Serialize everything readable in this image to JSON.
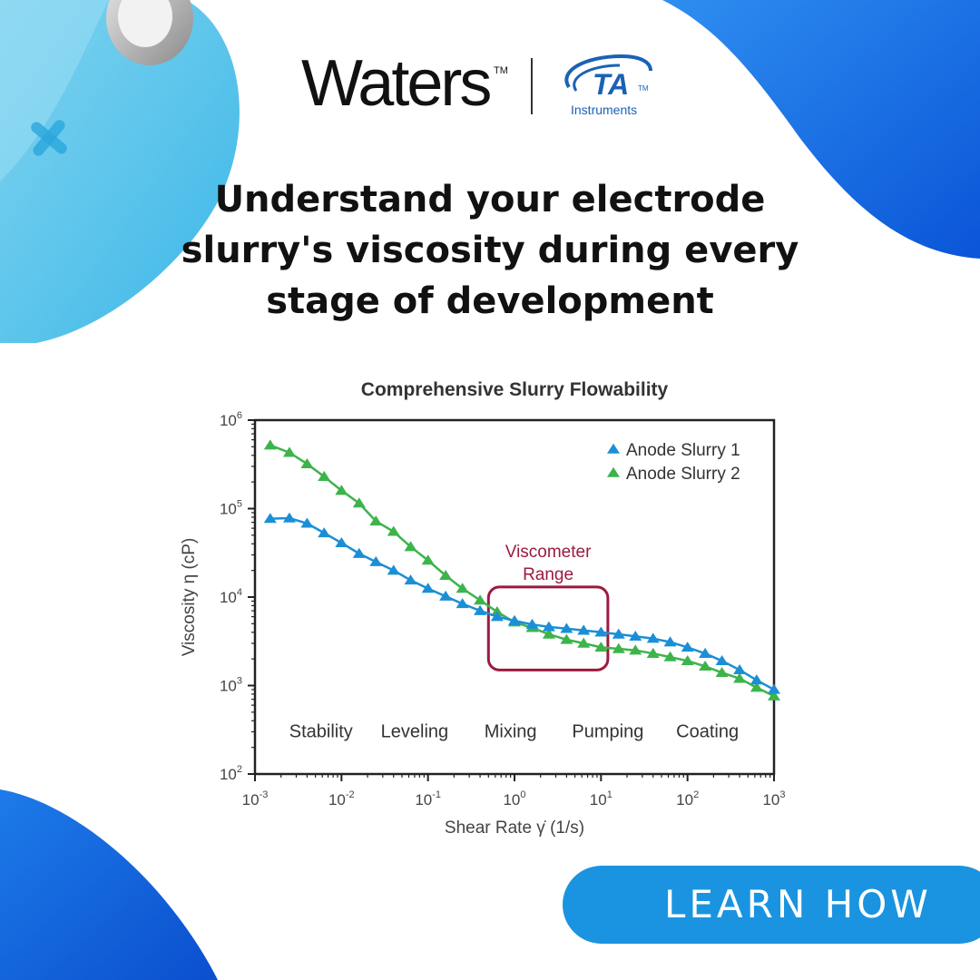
{
  "brand": {
    "waters": "Waters",
    "waters_tm": "TM",
    "ta": "TA",
    "ta_tm": "TM",
    "ta_sub": "Instruments"
  },
  "headline": {
    "lines": [
      "Understand your electrode",
      "slurry's viscosity during every",
      "stage of development"
    ]
  },
  "cta": {
    "label": "LEARN HOW"
  },
  "colors": {
    "series1": "#1b8fd6",
    "series2": "#3cb44b",
    "box": "#9b1b3f",
    "accent": "#1a94e0"
  },
  "chart_data": {
    "type": "line",
    "title": "Comprehensive Slurry Flowability",
    "xlabel": "Shear Rate γ̇ (1/s)",
    "ylabel": "Viscosity η (cP)",
    "xscale": "log",
    "yscale": "log",
    "xlim": [
      0.001,
      1000
    ],
    "ylim": [
      100,
      1000000
    ],
    "x_ticks": [
      {
        "base": "10",
        "exp": "-3"
      },
      {
        "base": "10",
        "exp": "-2"
      },
      {
        "base": "10",
        "exp": "-1"
      },
      {
        "base": "10",
        "exp": "0"
      },
      {
        "base": "10",
        "exp": "1"
      },
      {
        "base": "10",
        "exp": "2"
      },
      {
        "base": "10",
        "exp": "3"
      }
    ],
    "y_ticks": [
      {
        "base": "10",
        "exp": "2"
      },
      {
        "base": "10",
        "exp": "3"
      },
      {
        "base": "10",
        "exp": "4"
      },
      {
        "base": "10",
        "exp": "5"
      },
      {
        "base": "10",
        "exp": "6"
      }
    ],
    "grid": false,
    "legend": "top-right",
    "series": [
      {
        "name": "Anode Slurry 1",
        "marker": "triangle",
        "points": [
          [
            0.0015,
            77000
          ],
          [
            0.0025,
            78000
          ],
          [
            0.004,
            68000
          ],
          [
            0.0063,
            53000
          ],
          [
            0.01,
            41000
          ],
          [
            0.016,
            31000
          ],
          [
            0.025,
            25000
          ],
          [
            0.04,
            20000
          ],
          [
            0.063,
            15500
          ],
          [
            0.1,
            12500
          ],
          [
            0.16,
            10200
          ],
          [
            0.25,
            8400
          ],
          [
            0.4,
            7000
          ],
          [
            0.63,
            6000
          ],
          [
            1.0,
            5400
          ],
          [
            1.6,
            4900
          ],
          [
            2.5,
            4600
          ],
          [
            4.0,
            4400
          ],
          [
            6.3,
            4200
          ],
          [
            10,
            4000
          ],
          [
            16,
            3800
          ],
          [
            25,
            3600
          ],
          [
            40,
            3400
          ],
          [
            63,
            3100
          ],
          [
            100,
            2700
          ],
          [
            160,
            2300
          ],
          [
            250,
            1900
          ],
          [
            400,
            1500
          ],
          [
            630,
            1150
          ],
          [
            1000,
            900
          ]
        ]
      },
      {
        "name": "Anode Slurry 2",
        "marker": "triangle",
        "points": [
          [
            0.0015,
            520000
          ],
          [
            0.0025,
            430000
          ],
          [
            0.004,
            320000
          ],
          [
            0.0063,
            230000
          ],
          [
            0.01,
            160000
          ],
          [
            0.016,
            115000
          ],
          [
            0.025,
            72000
          ],
          [
            0.04,
            55000
          ],
          [
            0.063,
            37000
          ],
          [
            0.1,
            26000
          ],
          [
            0.16,
            17500
          ],
          [
            0.25,
            12500
          ],
          [
            0.4,
            9200
          ],
          [
            0.63,
            6800
          ],
          [
            1.0,
            5200
          ],
          [
            1.6,
            4500
          ],
          [
            2.5,
            3800
          ],
          [
            4.0,
            3300
          ],
          [
            6.3,
            3000
          ],
          [
            10,
            2700
          ],
          [
            16,
            2600
          ],
          [
            25,
            2500
          ],
          [
            40,
            2300
          ],
          [
            63,
            2100
          ],
          [
            100,
            1900
          ],
          [
            160,
            1650
          ],
          [
            250,
            1400
          ],
          [
            400,
            1200
          ],
          [
            630,
            950
          ],
          [
            1000,
            760
          ]
        ]
      }
    ],
    "annotations": {
      "box_label": [
        "Viscometer",
        "Range"
      ],
      "box_x": [
        0.5,
        12
      ],
      "box_y": [
        1500,
        13000
      ],
      "stages": [
        {
          "label": "Stability",
          "x": 0.0058
        },
        {
          "label": "Leveling",
          "x": 0.07
        },
        {
          "label": "Mixing",
          "x": 0.9
        },
        {
          "label": "Pumping",
          "x": 12
        },
        {
          "label": "Coating",
          "x": 170
        }
      ],
      "stages_y": 300
    }
  }
}
